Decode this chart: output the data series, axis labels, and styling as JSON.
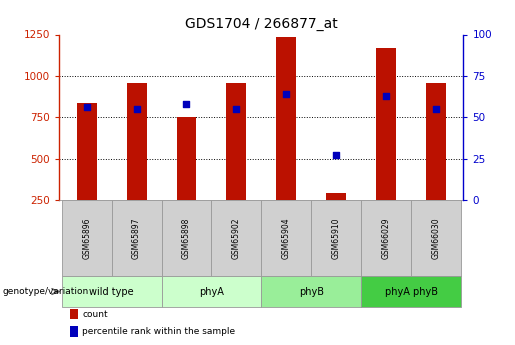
{
  "title": "GDS1704 / 266877_at",
  "samples": [
    "GSM65896",
    "GSM65897",
    "GSM65898",
    "GSM65902",
    "GSM65904",
    "GSM65910",
    "GSM66029",
    "GSM66030"
  ],
  "counts": [
    835,
    960,
    752,
    960,
    1235,
    290,
    1170,
    960
  ],
  "percentile_ranks": [
    56,
    55,
    58,
    55,
    64,
    27,
    63,
    55
  ],
  "groups": [
    {
      "label": "wild type",
      "start": 0,
      "end": 2,
      "color": "#ccffcc"
    },
    {
      "label": "phyA",
      "start": 2,
      "end": 4,
      "color": "#ccffcc"
    },
    {
      "label": "phyB",
      "start": 4,
      "end": 6,
      "color": "#99ee99"
    },
    {
      "label": "phyA phyB",
      "start": 6,
      "end": 8,
      "color": "#44cc44"
    }
  ],
  "ylim_left": [
    250,
    1250
  ],
  "ylim_right": [
    0,
    100
  ],
  "yticks_left": [
    250,
    500,
    750,
    1000,
    1250
  ],
  "yticks_right": [
    0,
    25,
    50,
    75,
    100
  ],
  "bar_color": "#bb1100",
  "dot_color": "#0000bb",
  "grid_color": "#555555",
  "bar_width": 0.4,
  "left_axis_color": "#cc2200",
  "right_axis_color": "#0000cc",
  "bg_plot": "#ffffff",
  "bg_label_row": "#d0d0d0",
  "bg_label_row_border": "#999999"
}
